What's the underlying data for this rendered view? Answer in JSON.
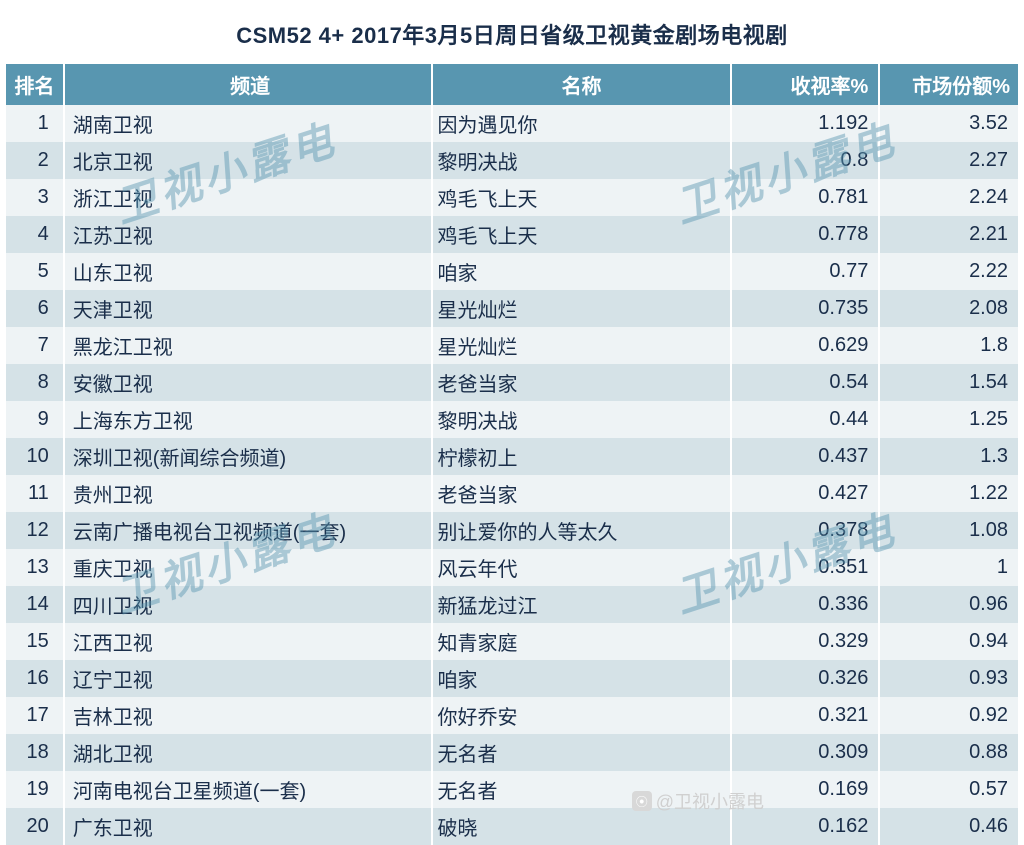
{
  "title": "CSM52 4+ 2017年3月5日周日省级卫视黄金剧场电视剧",
  "columns": {
    "rank": "排名",
    "channel": "频道",
    "name": "名称",
    "rating": "收视率%",
    "share": "市场份额%"
  },
  "rows": [
    {
      "rank": "1",
      "channel": "湖南卫视",
      "name": "因为遇见你",
      "rating": "1.192",
      "share": "3.52"
    },
    {
      "rank": "2",
      "channel": "北京卫视",
      "name": "黎明决战",
      "rating": "0.8",
      "share": "2.27"
    },
    {
      "rank": "3",
      "channel": "浙江卫视",
      "name": "鸡毛飞上天",
      "rating": "0.781",
      "share": "2.24"
    },
    {
      "rank": "4",
      "channel": "江苏卫视",
      "name": "鸡毛飞上天",
      "rating": "0.778",
      "share": "2.21"
    },
    {
      "rank": "5",
      "channel": "山东卫视",
      "name": "咱家",
      "rating": "0.77",
      "share": "2.22"
    },
    {
      "rank": "6",
      "channel": "天津卫视",
      "name": "星光灿烂",
      "rating": "0.735",
      "share": "2.08"
    },
    {
      "rank": "7",
      "channel": "黑龙江卫视",
      "name": "星光灿烂",
      "rating": "0.629",
      "share": "1.8"
    },
    {
      "rank": "8",
      "channel": "安徽卫视",
      "name": "老爸当家",
      "rating": "0.54",
      "share": "1.54"
    },
    {
      "rank": "9",
      "channel": "上海东方卫视",
      "name": "黎明决战",
      "rating": "0.44",
      "share": "1.25"
    },
    {
      "rank": "10",
      "channel": "深圳卫视(新闻综合频道)",
      "name": "柠檬初上",
      "rating": "0.437",
      "share": "1.3"
    },
    {
      "rank": "11",
      "channel": "贵州卫视",
      "name": "老爸当家",
      "rating": "0.427",
      "share": "1.22"
    },
    {
      "rank": "12",
      "channel": "云南广播电视台卫视频道(一套)",
      "name": "别让爱你的人等太久",
      "rating": "0.378",
      "share": "1.08"
    },
    {
      "rank": "13",
      "channel": "重庆卫视",
      "name": "风云年代",
      "rating": "0.351",
      "share": "1"
    },
    {
      "rank": "14",
      "channel": "四川卫视",
      "name": "新猛龙过江",
      "rating": "0.336",
      "share": "0.96"
    },
    {
      "rank": "15",
      "channel": "江西卫视",
      "name": "知青家庭",
      "rating": "0.329",
      "share": "0.94"
    },
    {
      "rank": "16",
      "channel": "辽宁卫视",
      "name": "咱家",
      "rating": "0.326",
      "share": "0.93"
    },
    {
      "rank": "17",
      "channel": "吉林卫视",
      "name": "你好乔安",
      "rating": "0.321",
      "share": "0.92"
    },
    {
      "rank": "18",
      "channel": "湖北卫视",
      "name": "无名者",
      "rating": "0.309",
      "share": "0.88"
    },
    {
      "rank": "19",
      "channel": "河南电视台卫星频道(一套)",
      "name": "无名者",
      "rating": "0.169",
      "share": "0.57"
    },
    {
      "rank": "20",
      "channel": "广东卫视",
      "name": "破晓",
      "rating": "0.162",
      "share": "0.46"
    }
  ],
  "watermark_text": "卫视小露电",
  "footer_text": "@卫视小露电",
  "styling": {
    "header_bg": "#5896b0",
    "odd_row_bg": "#eef3f5",
    "even_row_bg": "#d5e2e7",
    "text_color": "#1a2e4a",
    "header_text_color": "#ffffff",
    "watermark_color": "#5896b0",
    "watermark_opacity": 0.45,
    "title_fontsize": 22,
    "header_fontsize": 20,
    "cell_fontsize": 20
  }
}
